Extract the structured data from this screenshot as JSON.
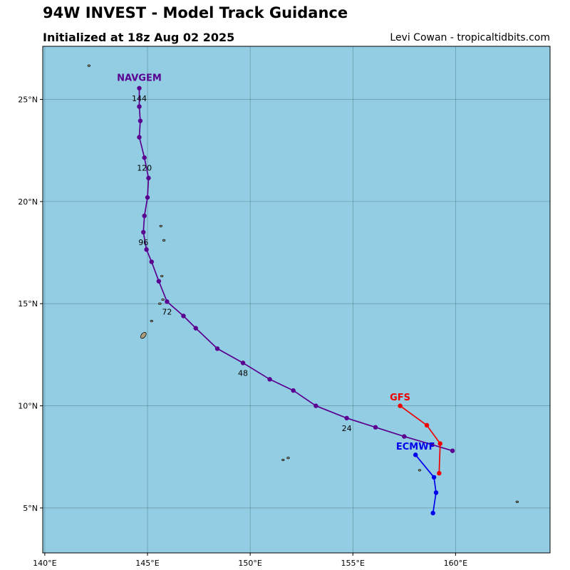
{
  "header": {
    "title": "94W INVEST - Model Track Guidance",
    "subtitle": "Initialized at 18z Aug 02 2025",
    "credit": "Levi Cowan - tropicaltidbits.com"
  },
  "map": {
    "lon_range": [
      139.9,
      164.6
    ],
    "lat_range": [
      2.8,
      27.6
    ],
    "lon_ticks": [
      {
        "value": 140,
        "label": "140°E"
      },
      {
        "value": 145,
        "label": "145°E"
      },
      {
        "value": 150,
        "label": "150°E"
      },
      {
        "value": 155,
        "label": "155°E"
      },
      {
        "value": 160,
        "label": "160°E"
      }
    ],
    "lat_ticks": [
      {
        "value": 5,
        "label": "5°N"
      },
      {
        "value": 10,
        "label": "10°N"
      },
      {
        "value": 15,
        "label": "15°N"
      },
      {
        "value": 20,
        "label": "20°N"
      },
      {
        "value": 25,
        "label": "25°N"
      }
    ],
    "ocean_color": "#93cde3",
    "land_color": "#a89c7c",
    "grid_color": "#4e7a85",
    "islands": [
      {
        "name": "guam",
        "lon": 144.8,
        "lat": 13.45
      },
      {
        "name": "rota",
        "lon": 145.2,
        "lat": 14.15
      },
      {
        "name": "tinian",
        "lon": 145.6,
        "lat": 15.0
      },
      {
        "name": "saipan",
        "lon": 145.75,
        "lat": 15.2
      },
      {
        "name": "anatahan",
        "lon": 145.7,
        "lat": 16.35
      },
      {
        "name": "pagan",
        "lon": 145.8,
        "lat": 18.1
      },
      {
        "name": "agrihan",
        "lon": 145.65,
        "lat": 18.8
      },
      {
        "name": "north-island",
        "lon": 142.15,
        "lat": 26.65
      },
      {
        "name": "chuuk-a",
        "lon": 151.6,
        "lat": 7.35
      },
      {
        "name": "chuuk-b",
        "lon": 151.85,
        "lat": 7.45
      },
      {
        "name": "pohnpei",
        "lon": 158.25,
        "lat": 6.85
      },
      {
        "name": "kosrae",
        "lon": 163.0,
        "lat": 5.3
      }
    ]
  },
  "models": [
    {
      "name": "NAVGEM",
      "color": "#5a0090",
      "label_pos": {
        "lon": 144.6,
        "lat": 26.05
      },
      "points": [
        {
          "lon": 159.85,
          "lat": 7.8
        },
        {
          "lon": 158.85,
          "lat": 8.1
        },
        {
          "lon": 157.5,
          "lat": 8.5
        },
        {
          "lon": 156.1,
          "lat": 8.95
        },
        {
          "lon": 154.7,
          "lat": 9.4
        },
        {
          "lon": 153.2,
          "lat": 10.0
        },
        {
          "lon": 152.1,
          "lat": 10.75
        },
        {
          "lon": 150.95,
          "lat": 11.3
        },
        {
          "lon": 149.65,
          "lat": 12.1
        },
        {
          "lon": 148.4,
          "lat": 12.8
        },
        {
          "lon": 147.35,
          "lat": 13.8
        },
        {
          "lon": 146.75,
          "lat": 14.4
        },
        {
          "lon": 145.95,
          "lat": 15.1
        },
        {
          "lon": 145.55,
          "lat": 16.1
        },
        {
          "lon": 145.2,
          "lat": 17.05
        },
        {
          "lon": 144.95,
          "lat": 17.65
        },
        {
          "lon": 144.8,
          "lat": 18.5
        },
        {
          "lon": 144.85,
          "lat": 19.3
        },
        {
          "lon": 145.0,
          "lat": 20.2
        },
        {
          "lon": 145.05,
          "lat": 21.15
        },
        {
          "lon": 144.85,
          "lat": 22.15
        },
        {
          "lon": 144.6,
          "lat": 23.15
        },
        {
          "lon": 144.65,
          "lat": 23.95
        },
        {
          "lon": 144.6,
          "lat": 24.65
        },
        {
          "lon": 144.6,
          "lat": 25.55
        }
      ],
      "hour_labels": [
        {
          "text": "24",
          "lon": 154.7,
          "lat": 8.9
        },
        {
          "text": "48",
          "lon": 149.65,
          "lat": 11.6
        },
        {
          "text": "72",
          "lon": 145.95,
          "lat": 14.6
        },
        {
          "text": "96",
          "lon": 144.8,
          "lat": 18.0
        },
        {
          "text": "120",
          "lon": 144.85,
          "lat": 21.65
        },
        {
          "text": "144",
          "lon": 144.6,
          "lat": 25.05
        }
      ]
    },
    {
      "name": "GFS",
      "color": "#ee0000",
      "label_pos": {
        "lon": 157.3,
        "lat": 10.4
      },
      "points": [
        {
          "lon": 157.3,
          "lat": 10.0
        },
        {
          "lon": 158.6,
          "lat": 9.05
        },
        {
          "lon": 159.25,
          "lat": 8.15
        },
        {
          "lon": 159.2,
          "lat": 6.7
        }
      ],
      "hour_labels": []
    },
    {
      "name": "ECMWF",
      "color": "#0000ee",
      "label_pos": {
        "lon": 158.05,
        "lat": 8.0
      },
      "points": [
        {
          "lon": 158.05,
          "lat": 7.6
        },
        {
          "lon": 158.95,
          "lat": 6.5
        },
        {
          "lon": 159.05,
          "lat": 5.75
        },
        {
          "lon": 158.9,
          "lat": 4.75
        }
      ],
      "hour_labels": []
    }
  ]
}
